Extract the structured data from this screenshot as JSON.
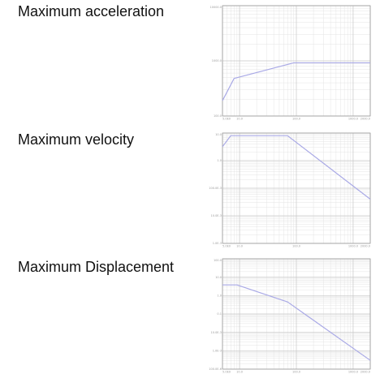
{
  "headings": [
    "Maximum acceleration",
    "Maximum velocity",
    "Maximum Displacement"
  ],
  "colors": {
    "series": "#a9a9e6",
    "grid_major": "#c8c8c8",
    "grid_minor": "#e4e4e4",
    "frame": "#9a9a9a"
  },
  "chart_data": [
    {
      "type": "line",
      "title": "Maximum acceleration",
      "xscale": "log",
      "yscale": "log",
      "xlim": [
        5,
        2000
      ],
      "ylim": [
        100,
        10000
      ],
      "x_ticks": [
        5,
        10,
        100,
        1000,
        2000
      ],
      "x_tick_labels": [
        "5.0E0",
        "10.0",
        "100.0",
        "1000.0",
        "2000.0"
      ],
      "y_ticks": [
        10000,
        1000,
        100
      ],
      "y_tick_labels": [
        "10000.0",
        "1000.0",
        "100.0"
      ],
      "grid": true,
      "series": [
        {
          "x": [
            5,
            8,
            90,
            2000
          ],
          "y": [
            190,
            480,
            920,
            920
          ]
        }
      ]
    },
    {
      "type": "line",
      "title": "Maximum velocity",
      "xscale": "log",
      "yscale": "log",
      "xlim": [
        5,
        2000
      ],
      "ylim": [
        0.001,
        10
      ],
      "x_ticks": [
        5,
        10,
        100,
        1000,
        2000
      ],
      "x_tick_labels": [
        "5.0E0",
        "10.0",
        "100.0",
        "1000.0",
        "2000.0"
      ],
      "y_ticks": [
        10,
        1,
        0.1,
        0.01,
        0.001
      ],
      "y_tick_labels": [
        "10.0",
        "1.0",
        "100.0E-3",
        "10.0E-3",
        "1.0E-3"
      ],
      "grid": true,
      "series": [
        {
          "x": [
            5,
            7,
            70,
            2000
          ],
          "y": [
            3.2,
            8,
            8,
            0.04
          ]
        }
      ]
    },
    {
      "type": "line",
      "title": "Maximum Displacement",
      "xscale": "log",
      "yscale": "log",
      "xlim": [
        5,
        2000
      ],
      "ylim": [
        0.0001,
        100
      ],
      "x_ticks": [
        5,
        10,
        100,
        1000,
        2000
      ],
      "x_tick_labels": [
        "5.0E0",
        "10.0",
        "100.0",
        "1000.0",
        "2000.0"
      ],
      "y_ticks": [
        100,
        10,
        1,
        0.1,
        0.01,
        0.001,
        0.0001
      ],
      "y_tick_labels": [
        "100.0",
        "10.0",
        "1.0",
        "0.1",
        "10.0E-3",
        "1.0E-3",
        "100.0E-6"
      ],
      "grid": true,
      "series": [
        {
          "x": [
            5,
            9,
            70,
            2000
          ],
          "y": [
            3.8,
            3.8,
            0.45,
            0.0003
          ]
        }
      ]
    }
  ]
}
